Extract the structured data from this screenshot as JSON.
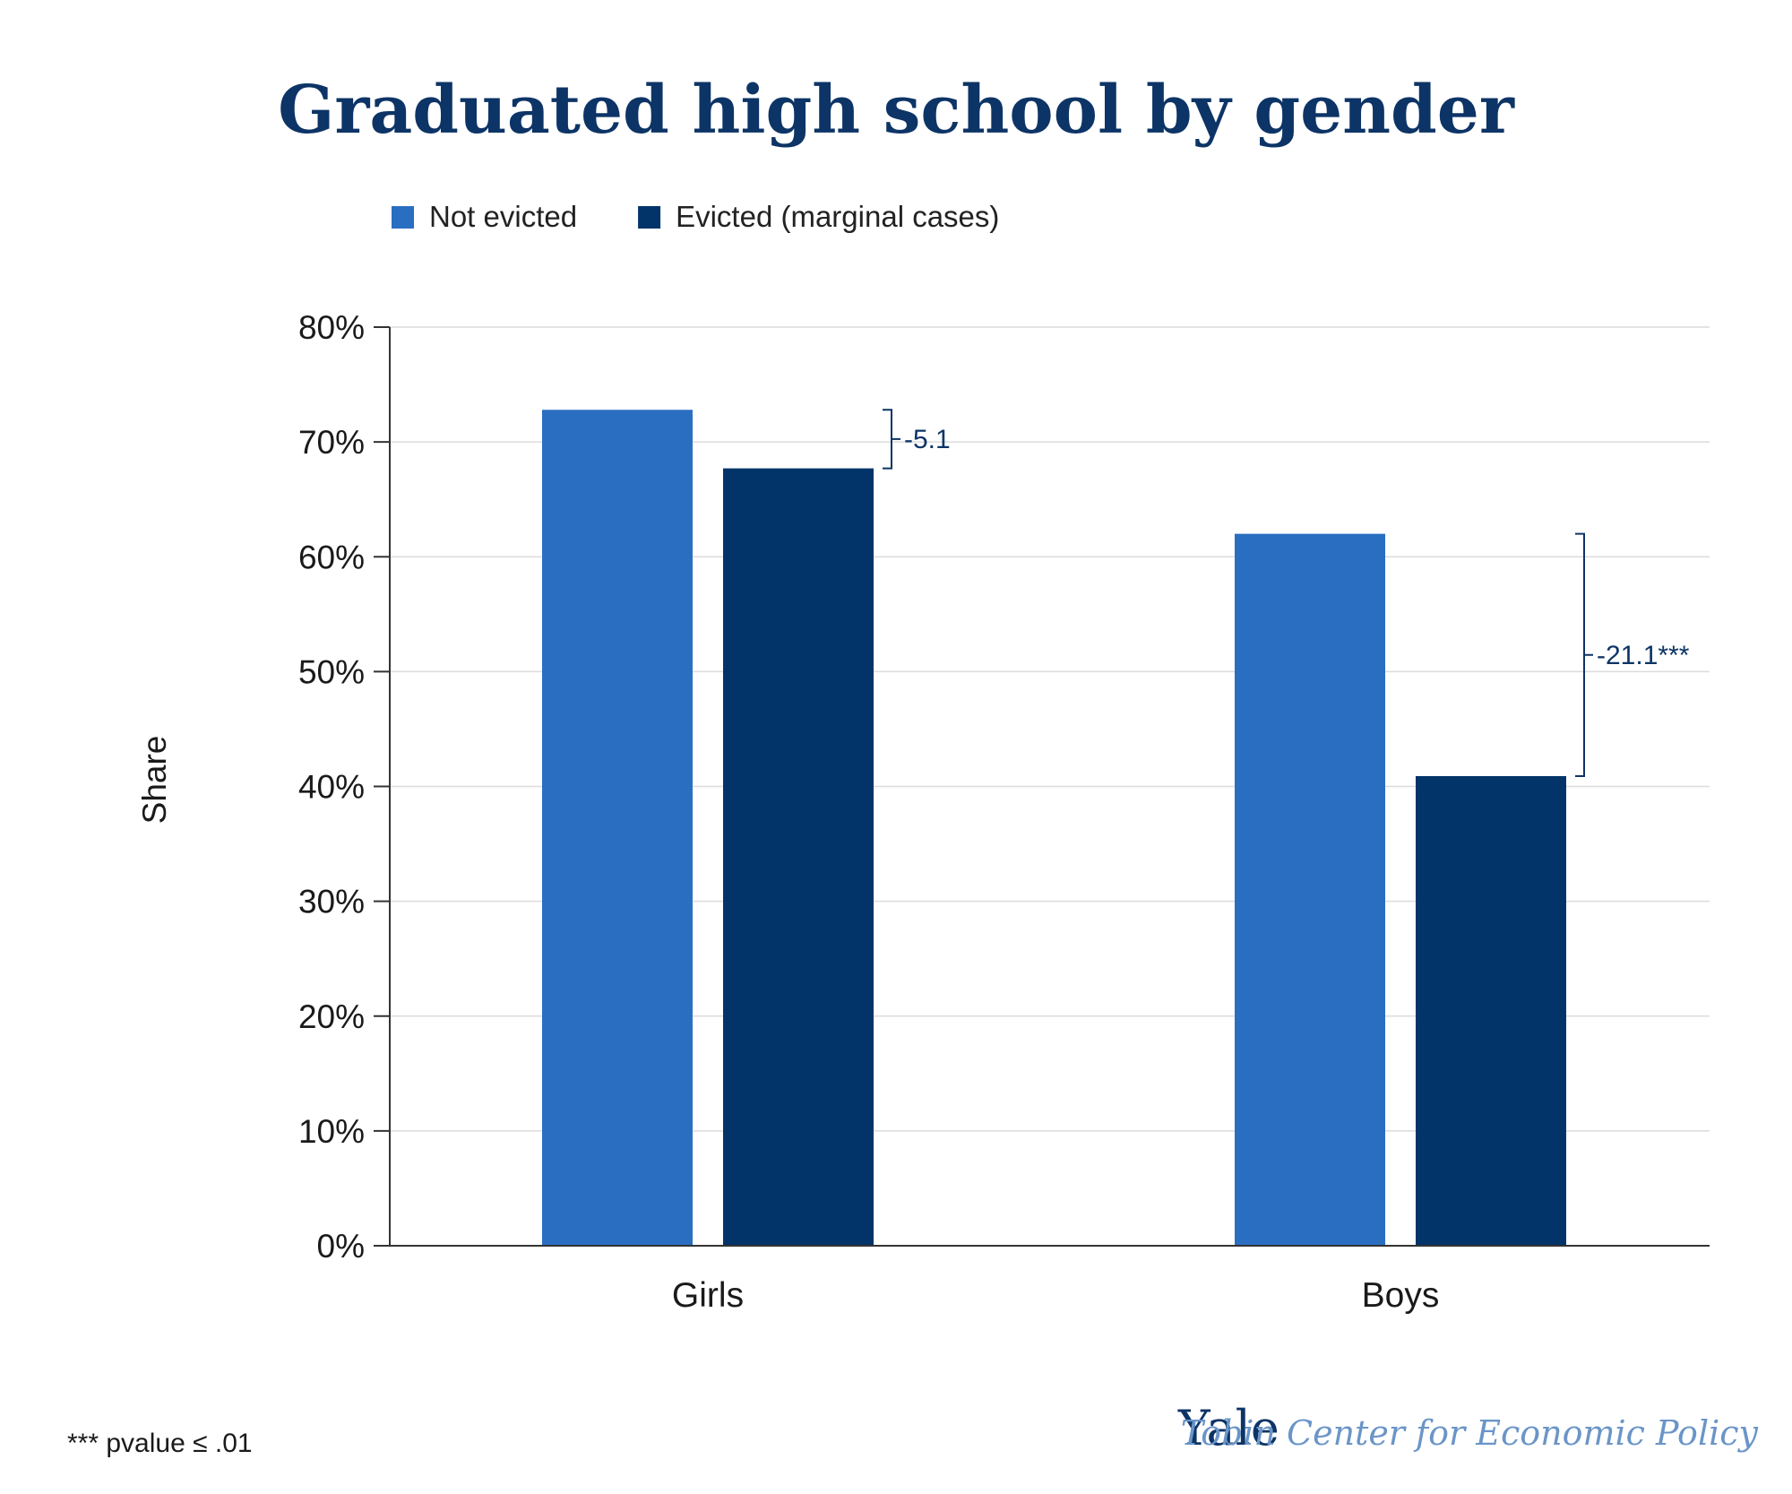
{
  "chart_data": {
    "type": "bar",
    "title": "Graduated high school by gender",
    "ylabel": "Share",
    "xlabel": "",
    "categories": [
      "Girls",
      "Boys"
    ],
    "series": [
      {
        "name": "Not evicted",
        "values": [
          72.8,
          62.0
        ],
        "color": "#2a6ec1"
      },
      {
        "name": "Evicted (marginal cases)",
        "values": [
          67.7,
          40.9
        ],
        "color": "#033469"
      }
    ],
    "ylim": [
      0,
      80
    ],
    "yticks": [
      0,
      10,
      20,
      30,
      40,
      50,
      60,
      70,
      80
    ],
    "ytick_labels": [
      "0%",
      "10%",
      "20%",
      "30%",
      "40%",
      "50%",
      "60%",
      "70%",
      "80%"
    ],
    "grid": true,
    "legend_position": "top-left",
    "annotations": [
      {
        "category": "Girls",
        "from": 72.8,
        "to": 67.7,
        "label": "-5.1"
      },
      {
        "category": "Boys",
        "from": 62.0,
        "to": 40.9,
        "label": "-21.1***"
      }
    ]
  },
  "footnote": "*** pvalue ≤ .01",
  "branding": {
    "yale": "Yale",
    "center": "Tobin Center for Economic Policy"
  }
}
